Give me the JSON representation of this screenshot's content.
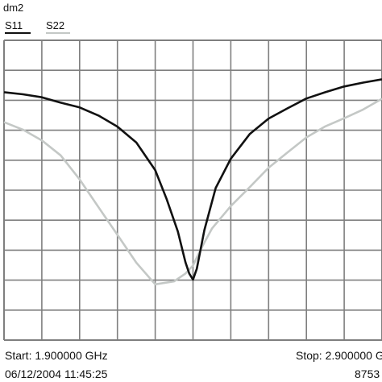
{
  "header": {
    "marker_label": "dm2",
    "legend": [
      {
        "label": "S11",
        "color": "#111111"
      },
      {
        "label": "S22",
        "color": "#c4c8c6"
      }
    ]
  },
  "footer": {
    "start": "Start: 1.900000 GHz",
    "stop": "Stop: 2.900000 G",
    "timestamp": "06/12/2004 11:45:25",
    "instrument": "8753"
  },
  "colors": {
    "grid": "#7f7f7f",
    "s11": "#111111",
    "s22": "#c4c8c6",
    "background": "#ffffff"
  },
  "chart_data": {
    "type": "line",
    "grid": true,
    "grid_divisions": {
      "x": 10,
      "y": 10
    },
    "xlim": [
      1.9,
      2.9
    ],
    "ylim": [
      0,
      10
    ],
    "x_unit": "GHz",
    "series": [
      {
        "name": "S11",
        "x": [
          1.9,
          1.95,
          2.0,
          2.05,
          2.1,
          2.15,
          2.2,
          2.25,
          2.3,
          2.33,
          2.36,
          2.38,
          2.39,
          2.4,
          2.41,
          2.43,
          2.46,
          2.5,
          2.55,
          2.6,
          2.65,
          2.7,
          2.75,
          2.8,
          2.85,
          2.9
        ],
        "y": [
          8.27,
          8.2,
          8.1,
          7.92,
          7.76,
          7.49,
          7.12,
          6.59,
          5.67,
          4.71,
          3.62,
          2.6,
          2.22,
          2.02,
          2.38,
          3.67,
          5.07,
          6.05,
          6.87,
          7.39,
          7.73,
          8.06,
          8.27,
          8.46,
          8.59,
          8.7
        ]
      },
      {
        "name": "S22",
        "x": [
          1.9,
          1.95,
          2.0,
          2.05,
          2.1,
          2.15,
          2.2,
          2.25,
          2.3,
          2.35,
          2.38,
          2.4,
          2.42,
          2.45,
          2.5,
          2.55,
          2.6,
          2.65,
          2.7,
          2.75,
          2.8,
          2.85,
          2.9
        ],
        "y": [
          7.27,
          7.02,
          6.66,
          6.16,
          5.36,
          4.43,
          3.51,
          2.58,
          1.86,
          1.96,
          2.22,
          2.49,
          3.02,
          3.72,
          4.47,
          5.1,
          5.75,
          6.26,
          6.76,
          7.13,
          7.4,
          7.69,
          8.05
        ]
      }
    ]
  }
}
